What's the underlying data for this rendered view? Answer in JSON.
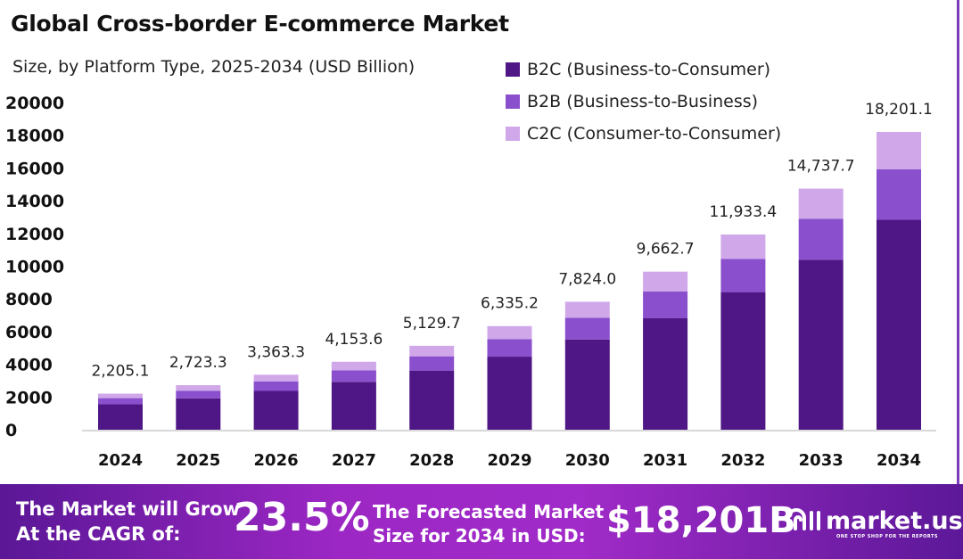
{
  "chart_data": {
    "type": "bar",
    "stacked": true,
    "title": "Global Cross-border E-commerce Market",
    "subtitle": "Size, by Platform Type, 2025-2034 (USD Billion)",
    "categories": [
      "2024",
      "2025",
      "2026",
      "2027",
      "2028",
      "2029",
      "2030",
      "2031",
      "2032",
      "2033",
      "2034"
    ],
    "series": [
      {
        "name": "B2C (Business-to-Consumer)",
        "color": "#4f1785",
        "values": [
          1555,
          1920,
          2371,
          2928,
          3616,
          4466,
          5516,
          6812,
          8413,
          10390,
          12832
        ]
      },
      {
        "name": "B2B (Business-to-Business)",
        "color": "#8a4fcc",
        "values": [
          375,
          463,
          572,
          706,
          872,
          1077,
          1330,
          1643,
          2029,
          2505,
          3094
        ]
      },
      {
        "name": "C2C (Consumer-to-Consumer)",
        "color": "#d0a8ea",
        "values": [
          275,
          340,
          420,
          520,
          642,
          792,
          978,
          1208,
          1491,
          1843,
          2275
        ]
      }
    ],
    "totals": [
      "2,205.1",
      "2,723.3",
      "3,363.3",
      "4,153.6",
      "5,129.7",
      "6,335.2",
      "7,824.0",
      "9,662.7",
      "11,933.4",
      "14,737.7",
      "18,201.1"
    ],
    "total_values": [
      2205.1,
      2723.3,
      3363.3,
      4153.6,
      5129.7,
      6335.2,
      7824.0,
      9662.7,
      11933.4,
      14737.7,
      18201.1
    ],
    "yticks": [
      "0",
      "2000",
      "4000",
      "6000",
      "8000",
      "10000",
      "12000",
      "14000",
      "16000",
      "18000",
      "20000"
    ],
    "ylim": [
      0,
      20000
    ],
    "grid": false,
    "legend": "top-right"
  },
  "footer": {
    "cagr_label_line1": "The Market will Grow",
    "cagr_label_line2": "At the CAGR of:",
    "cagr_value": "23.5%",
    "size_label_line1": "The Forecasted Market",
    "size_label_line2": "Size for 2034 in USD:",
    "size_value": "$18,201B",
    "logo_name": "market.us",
    "logo_tagline": "ONE STOP SHOP FOR THE REPORTS"
  }
}
